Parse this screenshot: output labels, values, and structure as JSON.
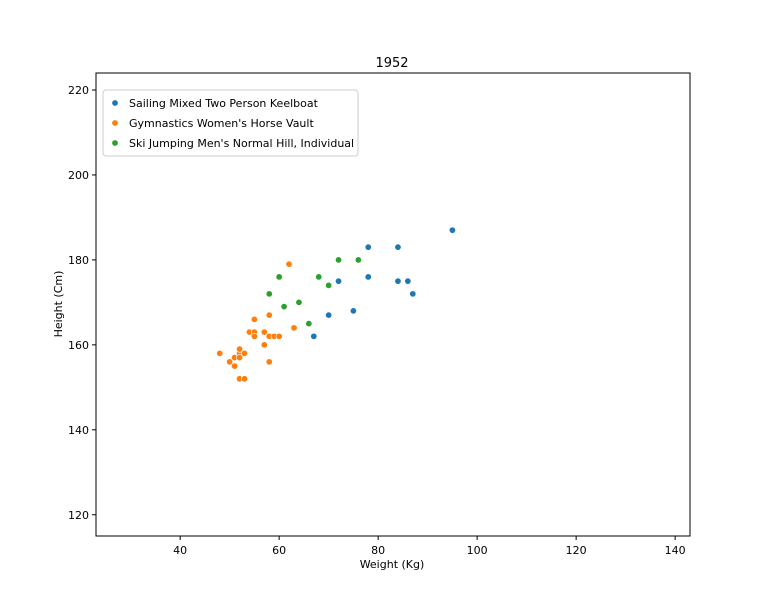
{
  "chart_data": {
    "type": "scatter",
    "title": "1952",
    "xlabel": "Weight (Kg)",
    "ylabel": "Height (Cm)",
    "xlim": [
      23,
      143
    ],
    "ylim": [
      115,
      224
    ],
    "xticks": [
      40,
      60,
      80,
      100,
      120,
      140
    ],
    "yticks": [
      120,
      140,
      160,
      180,
      200,
      220
    ],
    "grid": false,
    "legend_position": "top-left",
    "series": [
      {
        "name": "Sailing Mixed Two Person Keelboat",
        "color": "#1f77b4",
        "points": [
          [
            95,
            187
          ],
          [
            78,
            183
          ],
          [
            84,
            183
          ],
          [
            72,
            175
          ],
          [
            78,
            176
          ],
          [
            84,
            175
          ],
          [
            86,
            175
          ],
          [
            87,
            172
          ],
          [
            75,
            168
          ],
          [
            70,
            167
          ],
          [
            67,
            162
          ]
        ]
      },
      {
        "name": "Gymnastics Women's Horse Vault",
        "color": "#ff7f0e",
        "points": [
          [
            62,
            179
          ],
          [
            58,
            167
          ],
          [
            55,
            166
          ],
          [
            54,
            163
          ],
          [
            55,
            163
          ],
          [
            57,
            163
          ],
          [
            63,
            164
          ],
          [
            55,
            162
          ],
          [
            58,
            162
          ],
          [
            59,
            162
          ],
          [
            60,
            162
          ],
          [
            57,
            160
          ],
          [
            48,
            158
          ],
          [
            52,
            158
          ],
          [
            53,
            158
          ],
          [
            52,
            159
          ],
          [
            51,
            157
          ],
          [
            52,
            157
          ],
          [
            50,
            156
          ],
          [
            51,
            155
          ],
          [
            58,
            156
          ],
          [
            52,
            152
          ],
          [
            53,
            152
          ]
        ]
      },
      {
        "name": "Ski Jumping Men's Normal Hill, Individual",
        "color": "#2ca02c",
        "points": [
          [
            72,
            180
          ],
          [
            76,
            180
          ],
          [
            60,
            176
          ],
          [
            68,
            176
          ],
          [
            70,
            174
          ],
          [
            58,
            172
          ],
          [
            64,
            170
          ],
          [
            61,
            169
          ],
          [
            66,
            165
          ]
        ]
      }
    ]
  }
}
